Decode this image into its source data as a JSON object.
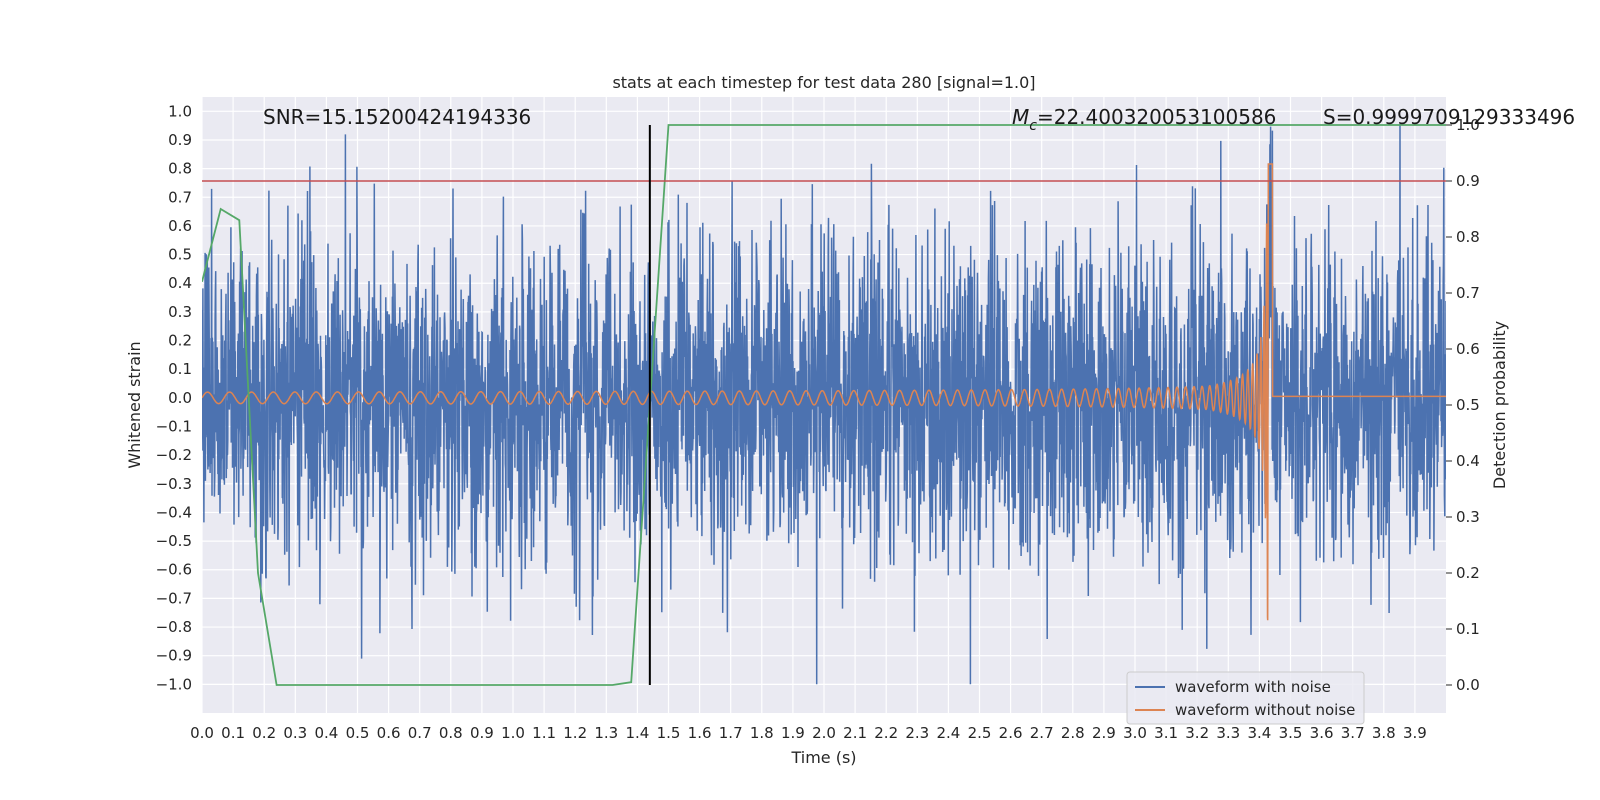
{
  "chart_data": {
    "type": "line",
    "title": "stats at each timestep for test data 280 [signal=1.0]",
    "xlabel": "Time (s)",
    "ylabel": "Whitened strain",
    "y2label": "Detection probability",
    "xlim": [
      0.0,
      4.0
    ],
    "ylim": [
      -1.1,
      1.05
    ],
    "y2lim": [
      -0.05,
      1.05
    ],
    "xticks": [
      "0.0",
      "0.1",
      "0.2",
      "0.3",
      "0.4",
      "0.5",
      "0.6",
      "0.7",
      "0.8",
      "0.9",
      "1.0",
      "1.1",
      "1.2",
      "1.3",
      "1.4",
      "1.5",
      "1.6",
      "1.7",
      "1.8",
      "1.9",
      "2.0",
      "2.1",
      "2.2",
      "2.3",
      "2.4",
      "2.5",
      "2.6",
      "2.7",
      "2.8",
      "2.9",
      "3.0",
      "3.1",
      "3.2",
      "3.3",
      "3.4",
      "3.5",
      "3.6",
      "3.7",
      "3.8",
      "3.9"
    ],
    "yticks": [
      "1.0",
      "0.9",
      "0.8",
      "0.7",
      "0.6",
      "0.5",
      "0.4",
      "0.3",
      "0.2",
      "0.1",
      "0.0",
      "−0.1",
      "−0.2",
      "−0.3",
      "−0.4",
      "−0.5",
      "−0.6",
      "−0.7",
      "−0.8",
      "−0.9",
      "−1.0"
    ],
    "y2ticks": [
      "1.0",
      "0.9",
      "0.8",
      "0.7",
      "0.6",
      "0.5",
      "0.4",
      "0.3",
      "0.2",
      "0.1",
      "0.0"
    ],
    "grid": true,
    "legend_position": "bottom-right",
    "annotations": {
      "snr": "SNR=15.15200424194336",
      "mc_prefix": "M",
      "mc_sub": "c",
      "mc_value": "=22.400320053100586",
      "s": "S=0.9999709129333496"
    },
    "series": [
      {
        "name": "waveform with noise",
        "color": "#4c72b0",
        "kind": "noise",
        "amplitude_rms": 0.28,
        "peak_range": [
          -1.0,
          0.97
        ]
      },
      {
        "name": "waveform without noise",
        "color": "#dd8452",
        "kind": "chirp",
        "t_merger": 3.43,
        "amplitude_start": 0.02,
        "amplitude_peak": 0.83,
        "post_merger_value": 0.005
      }
    ],
    "detection_probability": {
      "color": "#55a868",
      "axis": "right",
      "x": [
        0.0,
        0.06,
        0.12,
        0.18,
        0.24,
        0.3,
        0.36,
        0.42,
        0.48,
        0.54,
        0.6,
        0.66,
        0.72,
        0.78,
        0.84,
        0.9,
        0.96,
        1.02,
        1.08,
        1.14,
        1.2,
        1.26,
        1.32,
        1.38,
        1.44,
        1.5,
        1.56,
        3.9,
        3.96,
        4.0
      ],
      "y": [
        0.72,
        0.85,
        0.83,
        0.2,
        0.0,
        0.0,
        0.0,
        0.0,
        0.0,
        0.0,
        0.0,
        0.0,
        0.0,
        0.0,
        0.0,
        0.0,
        0.0,
        0.0,
        0.0,
        0.0,
        0.0,
        0.0,
        0.0,
        0.005,
        0.5,
        1.0,
        1.0,
        1.0,
        1.0,
        1.0
      ]
    },
    "threshold": {
      "value": 0.9,
      "axis": "right",
      "color": "#c44e52"
    },
    "detection_time": {
      "x": 1.44,
      "color": "#000000"
    }
  }
}
